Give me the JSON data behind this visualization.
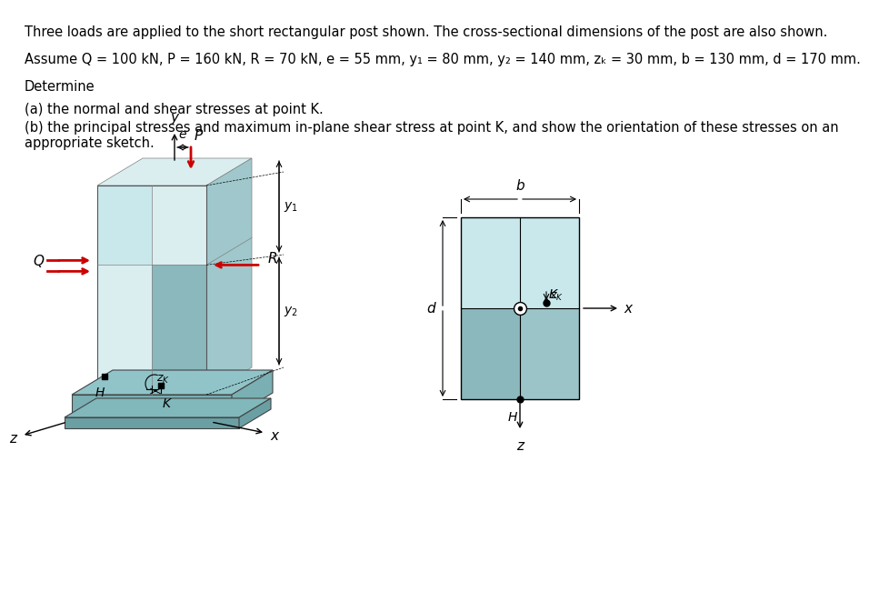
{
  "title_text": "Three loads are applied to the short rectangular post shown. The cross-sectional dimensions of the post are also shown.",
  "assume_text": "Assume Q = 100 kN, P = 160 kN, R = 70 kN, e = 55 mm, y₁ = 80 mm, y₂ = 140 mm, zₖ = 30 mm, b = 130 mm, d = 170 mm.",
  "determine_text": "Determine",
  "part_a": "(a) the normal and shear stresses at point K.",
  "part_b": "(b) the principal stresses and maximum in-plane shear stress at point K, and show the orientation of these stresses on an\nappropriate sketch.",
  "bg_color": "#ffffff",
  "post_face_light": "#c8e8ec",
  "post_face_dark": "#8ab8bc",
  "post_face_top": "#daeef0",
  "post_face_side": "#a0c8cc",
  "base_color": "#7ab0b4",
  "base_top": "#90c4c8"
}
